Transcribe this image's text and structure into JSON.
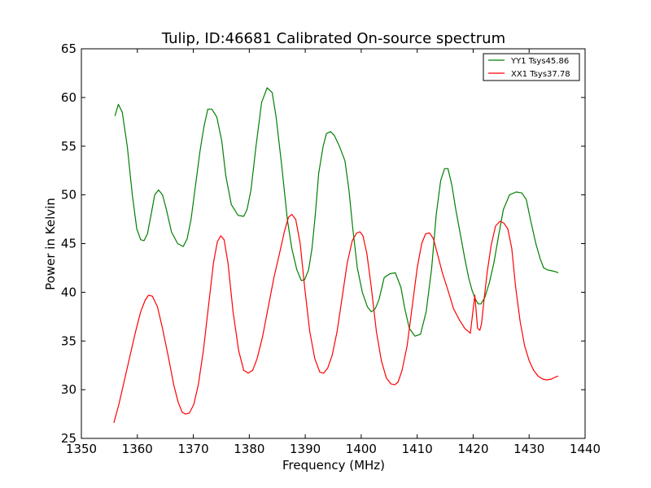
{
  "chart_data": {
    "type": "line",
    "title": "Tulip, ID:46681 Calibrated On-source spectrum",
    "xlabel": "Frequency (MHz)",
    "ylabel": "Power in Kelvin",
    "xlim": [
      1350,
      1440
    ],
    "ylim": [
      25,
      65
    ],
    "xticks": [
      1350,
      1360,
      1370,
      1380,
      1390,
      1400,
      1410,
      1420,
      1430,
      1440
    ],
    "yticks": [
      25,
      30,
      35,
      40,
      45,
      50,
      55,
      60,
      65
    ],
    "grid": false,
    "legend_position": "top-right",
    "series": [
      {
        "name": "YY1 Tsys45.86",
        "color": "#008000",
        "x": [
          1356,
          1356.6,
          1357.3,
          1358.2,
          1359.1,
          1359.9,
          1360.6,
          1361.2,
          1361.8,
          1362.4,
          1363.1,
          1363.8,
          1364.5,
          1365.2,
          1366.1,
          1367.2,
          1368.2,
          1368.9,
          1369.6,
          1370.4,
          1371.2,
          1371.9,
          1372.6,
          1373.3,
          1374.2,
          1375.1,
          1375.8,
          1376.8,
          1378,
          1379,
          1379.6,
          1380.3,
          1381.2,
          1382.2,
          1383.2,
          1384.1,
          1384.8,
          1385.8,
          1386.8,
          1387.6,
          1388.5,
          1389.3,
          1389.9,
          1390.6,
          1391.2,
          1391.8,
          1392.4,
          1393.2,
          1393.8,
          1394.5,
          1395.2,
          1396.1,
          1397.1,
          1397.8,
          1398.5,
          1399.3,
          1400.2,
          1401.1,
          1401.8,
          1402.5,
          1403.2,
          1404.1,
          1405.1,
          1406.1,
          1407.1,
          1407.8,
          1408.6,
          1409.6,
          1410.6,
          1411.6,
          1412.6,
          1413.4,
          1414.2,
          1414.9,
          1415.5,
          1416.2,
          1416.9,
          1417.7,
          1418.5,
          1419.2,
          1419.8,
          1420.4,
          1420.9,
          1421.4,
          1422.1,
          1422.9,
          1423.7,
          1424.6,
          1425.4,
          1426.5,
          1427.7,
          1428.7,
          1429.5,
          1430.3,
          1431.2,
          1432,
          1432.6,
          1433.3,
          1434.1,
          1434.8,
          1435.2
        ],
        "values": [
          58.1,
          59.3,
          58.5,
          55,
          50,
          46.5,
          45.4,
          45.3,
          46,
          47.8,
          50,
          50.5,
          50,
          48.5,
          46.2,
          45,
          44.7,
          45.5,
          47.5,
          51,
          54.5,
          57,
          58.8,
          58.8,
          58,
          55.5,
          52,
          49,
          47.9,
          47.8,
          48.5,
          50.5,
          55,
          59.5,
          61,
          60.5,
          58,
          53,
          47.5,
          44.5,
          42.3,
          41.2,
          41.3,
          42.3,
          44.5,
          48,
          52.2,
          55,
          56.3,
          56.5,
          56.1,
          55,
          53.5,
          50.5,
          46.5,
          42.5,
          40,
          38.5,
          38,
          38.3,
          39.3,
          41.5,
          41.9,
          42,
          40.5,
          38.3,
          36.3,
          35.5,
          35.7,
          38,
          42.5,
          48,
          51.5,
          52.7,
          52.7,
          51,
          48.5,
          46,
          43.5,
          41.5,
          40.2,
          39.3,
          38.8,
          38.8,
          39.5,
          41,
          43,
          46,
          48.5,
          50,
          50.3,
          50.2,
          49.5,
          47.3,
          45,
          43.4,
          42.5,
          42.3,
          42.2,
          42.1,
          42
        ],
        "_note": ""
      },
      {
        "name": "XX1 Tsys37.78",
        "color": "#ff0000",
        "x": [
          1355.8,
          1356.7,
          1357.7,
          1358.7,
          1359.7,
          1360.6,
          1361.4,
          1362,
          1362.7,
          1363.6,
          1364.5,
          1365.5,
          1366.5,
          1367.3,
          1368,
          1368.6,
          1369.3,
          1370.1,
          1370.9,
          1371.8,
          1372.7,
          1373.6,
          1374.3,
          1374.9,
          1375.5,
          1376.2,
          1377.1,
          1378.1,
          1379,
          1379.8,
          1380.6,
          1381.4,
          1382.4,
          1383.4,
          1384.4,
          1385.4,
          1386.3,
          1387,
          1387.6,
          1388.3,
          1389.1,
          1389.9,
          1390.8,
          1391.7,
          1392.6,
          1393.3,
          1394,
          1394.8,
          1395.7,
          1396.6,
          1397.5,
          1398.4,
          1399.2,
          1399.8,
          1400.3,
          1401,
          1401.8,
          1402.7,
          1403.6,
          1404.5,
          1405.3,
          1406,
          1406.6,
          1407.3,
          1408.2,
          1409.1,
          1410,
          1410.8,
          1411.5,
          1412.2,
          1412.9,
          1413.6,
          1414.5,
          1415.5,
          1416.5,
          1417.5,
          1418.5,
          1419.5,
          1420.3,
          1420.8,
          1421.2,
          1421.5,
          1421.9,
          1422.5,
          1423.2,
          1424,
          1424.8,
          1425.5,
          1426.2,
          1426.9,
          1427.6,
          1428.4,
          1429.2,
          1430,
          1430.8,
          1431.6,
          1432.4,
          1433.2,
          1434,
          1434.7,
          1435.2
        ],
        "values": [
          26.6,
          28.5,
          31,
          33.5,
          36,
          38,
          39.2,
          39.7,
          39.6,
          38.5,
          36.3,
          33.5,
          30.5,
          28.7,
          27.7,
          27.5,
          27.6,
          28.5,
          30.5,
          34,
          38.5,
          43,
          45.2,
          45.8,
          45.4,
          43,
          38,
          34,
          32,
          31.7,
          32,
          33.2,
          35.5,
          38.5,
          41.5,
          44,
          46.3,
          47.7,
          48,
          47.5,
          45,
          40.5,
          36,
          33.2,
          31.8,
          31.7,
          32.2,
          33.5,
          36,
          39.5,
          43,
          45.3,
          46.1,
          46.2,
          45.8,
          44,
          40.5,
          36,
          33,
          31.2,
          30.6,
          30.5,
          30.8,
          32,
          34.5,
          38.5,
          42.5,
          45,
          46,
          46.1,
          45.5,
          44,
          42,
          40.2,
          38.3,
          37.2,
          36.3,
          35.8,
          39.7,
          36.3,
          36.1,
          36.8,
          39,
          42,
          44.8,
          46.8,
          47.3,
          47.1,
          46.5,
          44.5,
          40.5,
          37,
          34.5,
          33,
          32,
          31.4,
          31.1,
          31,
          31.1,
          31.3,
          31.4
        ],
        "_note": ""
      }
    ]
  }
}
